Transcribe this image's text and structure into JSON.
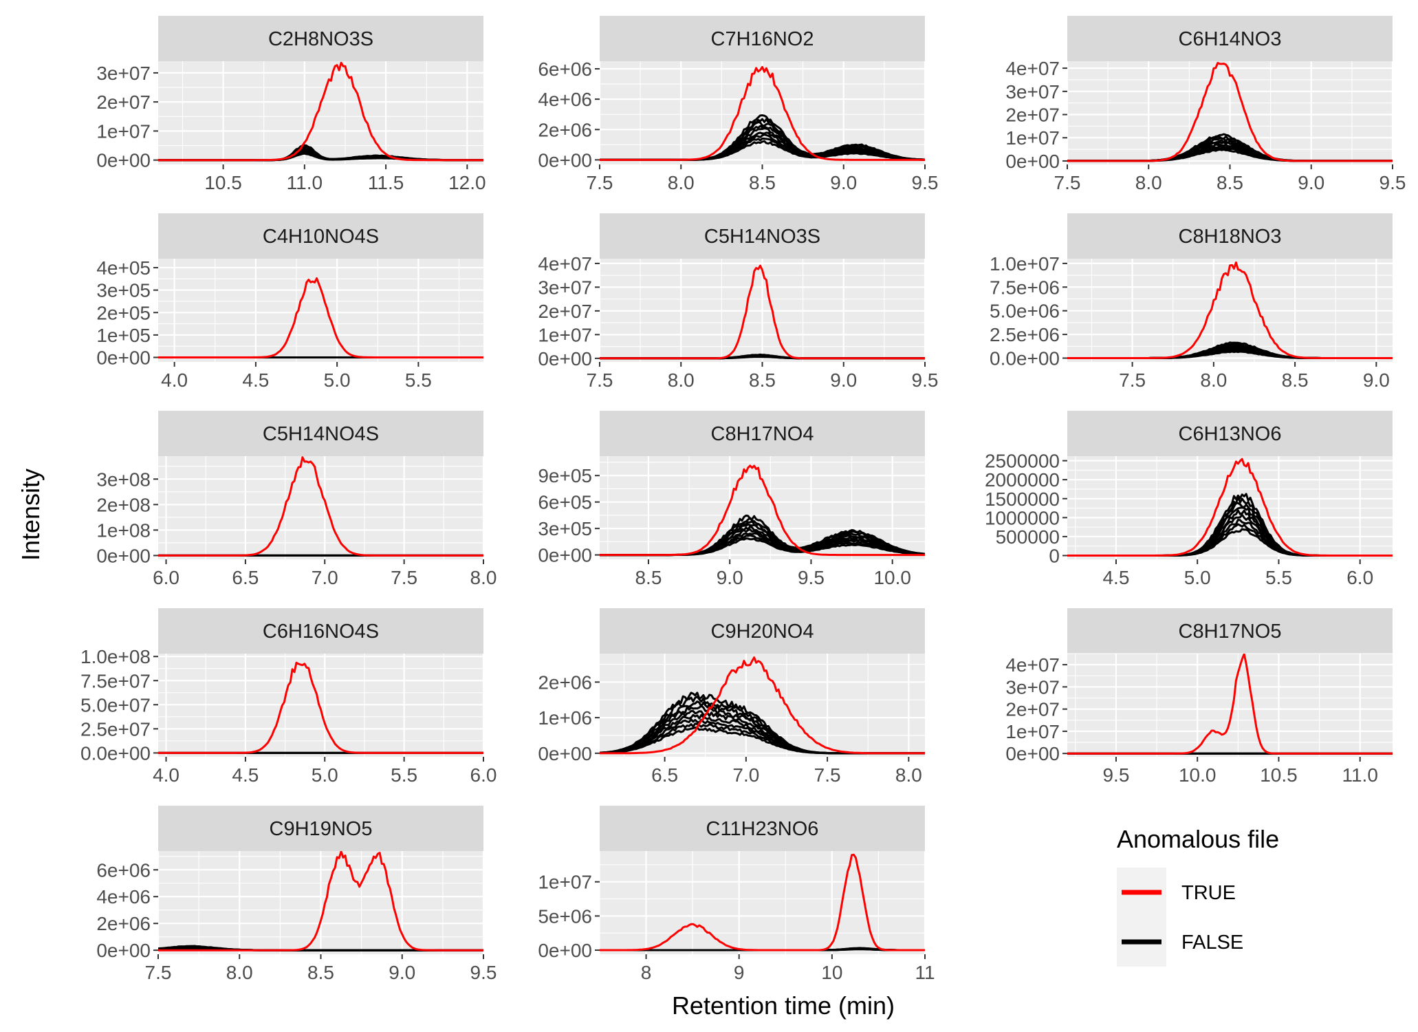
{
  "chart_data": {
    "type": "line",
    "layout": "faceted",
    "xlabel": "Retention time (min)",
    "ylabel": "Intensity",
    "legend": {
      "title": "Anomalous file",
      "position": "bottom-right",
      "entries": [
        {
          "label": "TRUE",
          "color": "#ff0000"
        },
        {
          "label": "FALSE",
          "color": "#000000"
        }
      ]
    },
    "panels": [
      {
        "title": "C2H8NO3S",
        "xlim": [
          10.1,
          12.1
        ],
        "ylim": [
          -1500000.0,
          34000000.0
        ],
        "xticks": [
          10.5,
          11.0,
          11.5,
          12.0
        ],
        "xtick_labels": [
          "10.5",
          "11.0",
          "11.5",
          "12.0"
        ],
        "yticks": [
          0,
          10000000.0,
          20000000.0,
          30000000.0
        ],
        "ytick_labels": [
          "0e+00",
          "1e+07",
          "2e+07",
          "3e+07"
        ],
        "true_peaks": [
          {
            "center": 11.22,
            "height": 32000000.0,
            "width": 0.12
          }
        ],
        "false_peaks": [
          {
            "center": 11.0,
            "height": 5000000.0,
            "width": 0.06
          },
          {
            "center": 11.45,
            "height": 1500000.0,
            "width": 0.15
          }
        ]
      },
      {
        "title": "C7H16NO2",
        "xlim": [
          7.5,
          9.5
        ],
        "ylim": [
          -300000.0,
          6500000.0
        ],
        "xticks": [
          7.5,
          8.0,
          8.5,
          9.0,
          9.5
        ],
        "xtick_labels": [
          "7.5",
          "8.0",
          "8.5",
          "9.0",
          "9.5"
        ],
        "yticks": [
          0,
          2000000.0,
          4000000.0,
          6000000.0
        ],
        "ytick_labels": [
          "0e+00",
          "2e+06",
          "4e+06",
          "6e+06"
        ],
        "true_peaks": [
          {
            "center": 8.5,
            "height": 6100000.0,
            "width": 0.13
          }
        ],
        "false_peaks": [
          {
            "center": 8.5,
            "height": 2800000.0,
            "width": 0.13
          },
          {
            "center": 9.07,
            "height": 1000000.0,
            "width": 0.15
          }
        ]
      },
      {
        "title": "C6H14NO3",
        "xlim": [
          7.5,
          9.5
        ],
        "ylim": [
          -1500000.0,
          43000000.0
        ],
        "xticks": [
          7.5,
          8.0,
          8.5,
          9.0,
          9.5
        ],
        "xtick_labels": [
          "7.5",
          "8.0",
          "8.5",
          "9.0",
          "9.5"
        ],
        "yticks": [
          0,
          10000000.0,
          20000000.0,
          30000000.0,
          40000000.0
        ],
        "ytick_labels": [
          "0e+00",
          "1e+07",
          "2e+07",
          "3e+07",
          "4e+07"
        ],
        "true_peaks": [
          {
            "center": 8.45,
            "height": 42000000.0,
            "width": 0.12
          }
        ],
        "false_peaks": [
          {
            "center": 8.45,
            "height": 11000000.0,
            "width": 0.15
          }
        ]
      },
      {
        "title": "C4H10NO4S",
        "xlim": [
          3.9,
          5.9
        ],
        "ylim": [
          -20000.0,
          440000.0
        ],
        "xticks": [
          4.0,
          4.5,
          5.0,
          5.5
        ],
        "xtick_labels": [
          "4.0",
          "4.5",
          "5.0",
          "5.5"
        ],
        "yticks": [
          0,
          100000.0,
          200000.0,
          300000.0,
          400000.0
        ],
        "ytick_labels": [
          "0e+00",
          "1e+05",
          "2e+05",
          "3e+05",
          "4e+05"
        ],
        "true_peaks": [
          {
            "center": 4.85,
            "height": 350000.0,
            "width": 0.09
          }
        ],
        "false_peaks": []
      },
      {
        "title": "C5H14NO3S",
        "xlim": [
          7.5,
          9.5
        ],
        "ylim": [
          -1500000.0,
          42000000.0
        ],
        "xticks": [
          7.5,
          8.0,
          8.5,
          9.0,
          9.5
        ],
        "xtick_labels": [
          "7.5",
          "8.0",
          "8.5",
          "9.0",
          "9.5"
        ],
        "yticks": [
          0,
          10000000.0,
          20000000.0,
          30000000.0,
          40000000.0
        ],
        "ytick_labels": [
          "0e+00",
          "1e+07",
          "2e+07",
          "3e+07",
          "4e+07"
        ],
        "true_peaks": [
          {
            "center": 8.48,
            "height": 39000000.0,
            "width": 0.07
          }
        ],
        "false_peaks": [
          {
            "center": 8.48,
            "height": 1500000.0,
            "width": 0.1
          }
        ]
      },
      {
        "title": "C8H18NO3",
        "xlim": [
          7.1,
          9.1
        ],
        "ylim": [
          -400000.0,
          10500000.0
        ],
        "xticks": [
          7.5,
          8.0,
          8.5,
          9.0
        ],
        "xtick_labels": [
          "7.5",
          "8.0",
          "8.5",
          "9.0"
        ],
        "yticks": [
          0,
          2500000.0,
          5000000.0,
          7500000.0,
          10000000.0
        ],
        "ytick_labels": [
          "0.0e+00",
          "2.5e+06",
          "5.0e+06",
          "7.5e+06",
          "1.0e+07"
        ],
        "true_peaks": [
          {
            "center": 8.13,
            "height": 9700000.0,
            "width": 0.13
          }
        ],
        "false_peaks": [
          {
            "center": 8.13,
            "height": 1600000.0,
            "width": 0.15
          }
        ]
      },
      {
        "title": "C5H14NO4S",
        "xlim": [
          5.95,
          8.0
        ],
        "ylim": [
          -15000000.0,
          390000000.0
        ],
        "xticks": [
          6.0,
          6.5,
          7.0,
          7.5,
          8.0
        ],
        "xtick_labels": [
          "6.0",
          "6.5",
          "7.0",
          "7.5",
          "8.0"
        ],
        "yticks": [
          0,
          100000000.0,
          200000000.0,
          300000000.0
        ],
        "ytick_labels": [
          "0e+00",
          "1e+08",
          "2e+08",
          "3e+08"
        ],
        "true_peaks": [
          {
            "center": 6.88,
            "height": 380000000.0,
            "width": 0.11
          }
        ],
        "false_peaks": []
      },
      {
        "title": "C8H17NO4",
        "xlim": [
          8.2,
          10.2
        ],
        "ylim": [
          -50000.0,
          1120000.0
        ],
        "xticks": [
          8.5,
          9.0,
          9.5,
          10.0
        ],
        "xtick_labels": [
          "8.5",
          "9.0",
          "9.5",
          "10.0"
        ],
        "yticks": [
          0,
          300000.0,
          600000.0,
          900000.0
        ],
        "ytick_labels": [
          "0e+00",
          "3e+05",
          "6e+05",
          "9e+05"
        ],
        "true_peaks": [
          {
            "center": 9.13,
            "height": 1000000.0,
            "width": 0.13
          }
        ],
        "false_peaks": [
          {
            "center": 9.12,
            "height": 430000.0,
            "width": 0.13
          },
          {
            "center": 9.75,
            "height": 270000.0,
            "width": 0.18
          }
        ]
      },
      {
        "title": "C6H13NO6",
        "xlim": [
          4.2,
          6.2
        ],
        "ylim": [
          -100000.0,
          2620000.0
        ],
        "xticks": [
          4.5,
          5.0,
          5.5,
          6.0
        ],
        "xtick_labels": [
          "4.5",
          "5.0",
          "5.5",
          "6.0"
        ],
        "yticks": [
          0,
          500000.0,
          1000000.0,
          1500000.0,
          2000000.0,
          2500000.0
        ],
        "ytick_labels": [
          "0",
          "500000",
          "1000000",
          "1500000",
          "2000000",
          "2500000"
        ],
        "true_peaks": [
          {
            "center": 5.27,
            "height": 2500000.0,
            "width": 0.13
          }
        ],
        "false_peaks": [
          {
            "center": 5.27,
            "height": 1600000.0,
            "width": 0.12
          }
        ]
      },
      {
        "title": "C6H16NO4S",
        "xlim": [
          3.95,
          6.0
        ],
        "ylim": [
          -4000000.0,
          103000000.0
        ],
        "xticks": [
          4.0,
          4.5,
          5.0,
          5.5,
          6.0
        ],
        "xtick_labels": [
          "4.0",
          "4.5",
          "5.0",
          "5.5",
          "6.0"
        ],
        "yticks": [
          0,
          25000000.0,
          50000000.0,
          75000000.0,
          100000000.0
        ],
        "ytick_labels": [
          "0.0e+00",
          "2.5e+07",
          "5.0e+07",
          "7.5e+07",
          "1.0e+08"
        ],
        "true_peaks": [
          {
            "center": 4.85,
            "height": 96000000.0,
            "width": 0.1
          }
        ],
        "false_peaks": []
      },
      {
        "title": "C9H20NO4",
        "xlim": [
          6.1,
          8.1
        ],
        "ylim": [
          -100000.0,
          2800000.0
        ],
        "xticks": [
          6.5,
          7.0,
          7.5,
          8.0
        ],
        "xtick_labels": [
          "6.5",
          "7.0",
          "7.5",
          "8.0"
        ],
        "yticks": [
          0,
          1000000.0,
          2000000.0
        ],
        "ytick_labels": [
          "0e+00",
          "1e+06",
          "2e+06"
        ],
        "true_peaks": [
          {
            "center": 7.02,
            "height": 2600000.0,
            "width": 0.2
          }
        ],
        "false_peaks": [
          {
            "center": 6.65,
            "height": 1500000.0,
            "width": 0.18
          },
          {
            "center": 7.0,
            "height": 1000000.0,
            "width": 0.16
          }
        ]
      },
      {
        "title": "C8H17NO5",
        "xlim": [
          9.2,
          11.2
        ],
        "ylim": [
          -1500000.0,
          45000000.0
        ],
        "xticks": [
          9.5,
          10.0,
          10.5,
          11.0
        ],
        "xtick_labels": [
          "9.5",
          "10.0",
          "10.5",
          "11.0"
        ],
        "yticks": [
          0,
          10000000.0,
          20000000.0,
          30000000.0,
          40000000.0
        ],
        "ytick_labels": [
          "0e+00",
          "1e+07",
          "2e+07",
          "3e+07",
          "4e+07"
        ],
        "true_peaks": [
          {
            "center": 10.28,
            "height": 44000000.0,
            "width": 0.05
          },
          {
            "center": 10.1,
            "height": 10000000.0,
            "width": 0.06
          }
        ],
        "false_peaks": []
      },
      {
        "title": "C9H19NO5",
        "xlim": [
          7.5,
          9.5
        ],
        "ylim": [
          -300000.0,
          7400000.0
        ],
        "xticks": [
          7.5,
          8.0,
          8.5,
          9.0,
          9.5
        ],
        "xtick_labels": [
          "7.5",
          "8.0",
          "8.5",
          "9.0",
          "9.5"
        ],
        "yticks": [
          0,
          2000000.0,
          4000000.0,
          6000000.0
        ],
        "ytick_labels": [
          "0e+00",
          "2e+06",
          "4e+06",
          "6e+06"
        ],
        "true_peaks": [
          {
            "center": 8.62,
            "height": 6900000.0,
            "width": 0.08
          },
          {
            "center": 8.85,
            "height": 7000000.0,
            "width": 0.08
          }
        ],
        "false_peaks": [
          {
            "center": 7.7,
            "height": 300000.0,
            "width": 0.15
          }
        ]
      },
      {
        "title": "C11H23NO6",
        "xlim": [
          7.5,
          11.0
        ],
        "ylim": [
          -600000.0,
          14500000.0
        ],
        "xticks": [
          8,
          9,
          10,
          11
        ],
        "xtick_labels": [
          "8",
          "9",
          "10",
          "11"
        ],
        "yticks": [
          0,
          5000000.0,
          10000000.0
        ],
        "ytick_labels": [
          "0e+00",
          "5e+06",
          "1e+07"
        ],
        "true_peaks": [
          {
            "center": 10.23,
            "height": 14000000.0,
            "width": 0.1
          },
          {
            "center": 8.5,
            "height": 3700000.0,
            "width": 0.2
          }
        ],
        "false_peaks": [
          {
            "center": 10.3,
            "height": 300000.0,
            "width": 0.15
          }
        ]
      }
    ]
  }
}
